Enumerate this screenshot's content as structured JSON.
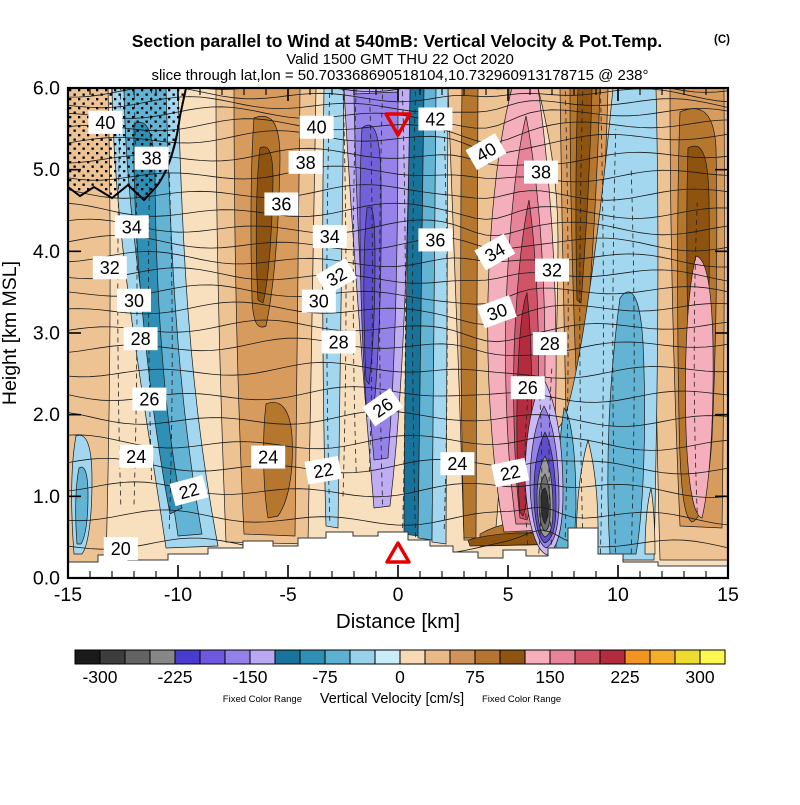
{
  "title": {
    "main": "Section parallel to Wind at 540mB: Vertical Velocity & Pot.Temp.",
    "suffix": "(C)",
    "valid_line": "Valid 1500 GMT THU 22 Oct 2020",
    "slice_line": "slice through lat,lon = 50.703368690518104,10.732960913178715 @ 238°"
  },
  "axes": {
    "x": {
      "label": "Distance [km]",
      "min": -15,
      "max": 15,
      "major": [
        -15,
        -10,
        -5,
        0,
        5,
        10,
        15
      ],
      "minor_step": 1
    },
    "y": {
      "label": "Height [km MSL]",
      "min": 0,
      "max": 6,
      "major": [
        0,
        1,
        2,
        3,
        4,
        5,
        6
      ],
      "labels": [
        "0.0",
        "1.0",
        "2.0",
        "3.0",
        "4.0",
        "5.0",
        "6.0"
      ]
    }
  },
  "colorbar": {
    "caption_left": "Fixed Color Range",
    "caption_center": "Vertical Velocity [cm/s]",
    "caption_right": "Fixed Color Range",
    "tick_labels": [
      "-300",
      "-225",
      "-150",
      "-75",
      "0",
      "75",
      "150",
      "225",
      "300"
    ],
    "range": [
      -325,
      325
    ],
    "step": 25,
    "segment_colors": [
      "#1a1a1a",
      "#3d3d3d",
      "#636363",
      "#878787",
      "#4a3bcf",
      "#6e58dd",
      "#9380e8",
      "#b9a9f2",
      "#18749c",
      "#2f8fb5",
      "#5db0d0",
      "#97d2ea",
      "#c8ecf8",
      "#f7d9b5",
      "#e9b988",
      "#d0945a",
      "#b5742f",
      "#8f5410",
      "#f4aebc",
      "#e8849a",
      "#d05468",
      "#b22b3e",
      "#f29422",
      "#f5ae2a",
      "#eedd30",
      "#fbf851"
    ]
  },
  "markers": {
    "color": "#e60000",
    "top": {
      "shape": "triangle-down",
      "x_km": 0.0
    },
    "bottom": {
      "shape": "triangle-up",
      "x_km": 0.0
    }
  },
  "chart_data": {
    "type": "filled-contour-cross-section",
    "title": "Section parallel to Wind at 540mB: Vertical Velocity & Pot.Temp. (C)",
    "valid": "Valid 1500 GMT THU 22 Oct 2020",
    "slice": "slice through lat,lon = 50.703368690518104,10.732960913178715 @ 238°",
    "xlabel": "Distance [km]",
    "xlim": [
      -15,
      15
    ],
    "ylabel": "Height [km MSL]",
    "ylim": [
      0,
      6
    ],
    "fill_field": {
      "name": "Vertical Velocity",
      "units": "cm/s",
      "labeled_levels": [
        -300,
        -225,
        -150,
        -75,
        0,
        75,
        150,
        225,
        300
      ],
      "contour_interval": 25,
      "range": [
        -325,
        325
      ]
    },
    "line_field": {
      "name": "Potential Temperature",
      "units": "C",
      "labeled_values": [
        20,
        22,
        24,
        26,
        28,
        30,
        32,
        34,
        36,
        38,
        40,
        42
      ]
    },
    "theta_anchors": [
      [
        20,
        0.39
      ],
      [
        22,
        1.08
      ],
      [
        24,
        1.66
      ],
      [
        26,
        2.25
      ],
      [
        28,
        2.84
      ],
      [
        30,
        3.28
      ],
      [
        32,
        3.7
      ],
      [
        34,
        4.1
      ],
      [
        36,
        4.5
      ],
      [
        38,
        4.95
      ],
      [
        40,
        5.38
      ],
      [
        42,
        5.67
      ],
      [
        44,
        5.92
      ]
    ],
    "contour_labels": [
      {
        "v": "40",
        "x": -13.3,
        "y": 5.58,
        "r": 0
      },
      {
        "v": "38",
        "x": -11.2,
        "y": 5.14,
        "r": 0
      },
      {
        "v": "34",
        "x": -12.1,
        "y": 4.3,
        "r": 0
      },
      {
        "v": "32",
        "x": -13.1,
        "y": 3.8,
        "r": 0
      },
      {
        "v": "30",
        "x": -12.0,
        "y": 3.4,
        "r": 0
      },
      {
        "v": "28",
        "x": -11.7,
        "y": 2.93,
        "r": 0
      },
      {
        "v": "26",
        "x": -11.3,
        "y": 2.19,
        "r": 0
      },
      {
        "v": "24",
        "x": -11.9,
        "y": 1.49,
        "r": 0
      },
      {
        "v": "22",
        "x": -9.5,
        "y": 1.07,
        "r": -15
      },
      {
        "v": "20",
        "x": -12.6,
        "y": 0.36,
        "r": 0
      },
      {
        "v": "40",
        "x": -3.7,
        "y": 5.52,
        "r": 0
      },
      {
        "v": "38",
        "x": -4.2,
        "y": 5.09,
        "r": 0
      },
      {
        "v": "36",
        "x": -5.3,
        "y": 4.58,
        "r": 0
      },
      {
        "v": "34",
        "x": -3.1,
        "y": 4.18,
        "r": 0
      },
      {
        "v": "32",
        "x": -2.8,
        "y": 3.69,
        "r": -30
      },
      {
        "v": "30",
        "x": -3.6,
        "y": 3.39,
        "r": 0
      },
      {
        "v": "28",
        "x": -2.7,
        "y": 2.89,
        "r": 0
      },
      {
        "v": "26",
        "x": -0.7,
        "y": 2.09,
        "r": -35
      },
      {
        "v": "24",
        "x": -5.9,
        "y": 1.48,
        "r": 0
      },
      {
        "v": "22",
        "x": -3.4,
        "y": 1.32,
        "r": -10
      },
      {
        "v": "42",
        "x": 1.7,
        "y": 5.62,
        "r": 0
      },
      {
        "v": "40",
        "x": 4.0,
        "y": 5.22,
        "r": -30
      },
      {
        "v": "38",
        "x": 6.5,
        "y": 4.97,
        "r": 0
      },
      {
        "v": "36",
        "x": 1.7,
        "y": 4.14,
        "r": 0
      },
      {
        "v": "34",
        "x": 4.4,
        "y": 3.99,
        "r": -30
      },
      {
        "v": "32",
        "x": 7.0,
        "y": 3.77,
        "r": 0
      },
      {
        "v": "30",
        "x": 4.5,
        "y": 3.26,
        "r": -20
      },
      {
        "v": "28",
        "x": 6.9,
        "y": 2.87,
        "r": 0
      },
      {
        "v": "26",
        "x": 5.9,
        "y": 2.33,
        "r": 0
      },
      {
        "v": "24",
        "x": 2.7,
        "y": 1.4,
        "r": 0
      },
      {
        "v": "22",
        "x": 5.1,
        "y": 1.29,
        "r": -12
      }
    ],
    "markers": [
      {
        "shape": "triangle-down",
        "x_km": 0.0,
        "position": "top of section"
      },
      {
        "shape": "triangle-up",
        "x_km": 0.0,
        "position": "ground at x=0"
      }
    ],
    "features": [
      "strong descending (negative, purple) column near x = -1 km through full depth",
      "strong ascending (positive, pink/red) column near x = 4 km, core 150-225 cm/s below 3.5 km",
      "intense narrow downdraft (gray/black core < -250 cm/s ringed by purple) near x = 6.5 km below 2 km",
      "alternating up(tan/brown)/down(blue) bands across the section",
      "stippled region in upper-left corner above 5.2 km",
      "white stepped terrain profile along the bottom, highest near x = 0 and x = 8.5 km"
    ],
    "legend_position": "horizontal colorbar below x-axis",
    "grid": false
  }
}
